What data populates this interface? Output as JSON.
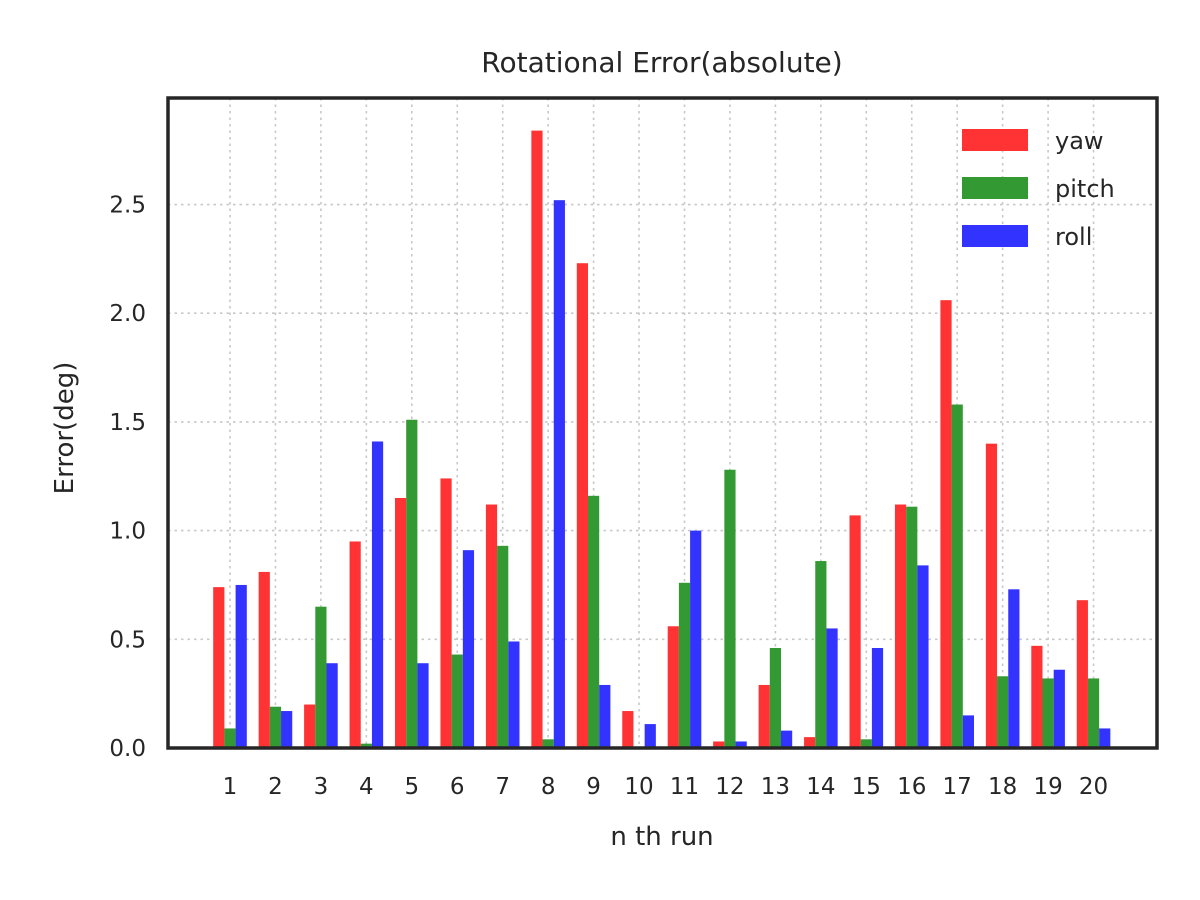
{
  "chart_data": {
    "type": "bar",
    "title": "Rotational Error(absolute)",
    "xlabel": "n th run",
    "ylabel": "Error(deg)",
    "categories": [
      "1",
      "2",
      "3",
      "4",
      "5",
      "6",
      "7",
      "8",
      "9",
      "10",
      "11",
      "12",
      "13",
      "14",
      "15",
      "16",
      "17",
      "18",
      "19",
      "20"
    ],
    "series": [
      {
        "name": "yaw",
        "color": "#ff3333",
        "values": [
          0.74,
          0.81,
          0.2,
          0.95,
          1.15,
          1.24,
          1.12,
          2.84,
          2.23,
          0.17,
          0.56,
          0.03,
          0.29,
          0.05,
          1.07,
          1.12,
          2.06,
          1.4,
          0.47,
          0.68
        ]
      },
      {
        "name": "pitch",
        "color": "#339933",
        "values": [
          0.09,
          0.19,
          0.65,
          0.02,
          1.51,
          0.43,
          0.93,
          0.04,
          1.16,
          0.0,
          0.76,
          1.28,
          0.46,
          0.86,
          0.04,
          1.11,
          1.58,
          0.33,
          0.32,
          0.32
        ]
      },
      {
        "name": "roll",
        "color": "#3333ff",
        "values": [
          0.75,
          0.17,
          0.39,
          1.41,
          0.39,
          0.91,
          0.49,
          2.52,
          0.29,
          0.11,
          1.0,
          0.03,
          0.08,
          0.55,
          0.46,
          0.84,
          0.15,
          0.73,
          0.36,
          0.09
        ]
      }
    ],
    "yticks": [
      "0.0",
      "0.5",
      "1.0",
      "1.5",
      "2.0",
      "2.5"
    ],
    "ylim": [
      0,
      2.99
    ],
    "grid": true,
    "legend_position": "top-right"
  }
}
